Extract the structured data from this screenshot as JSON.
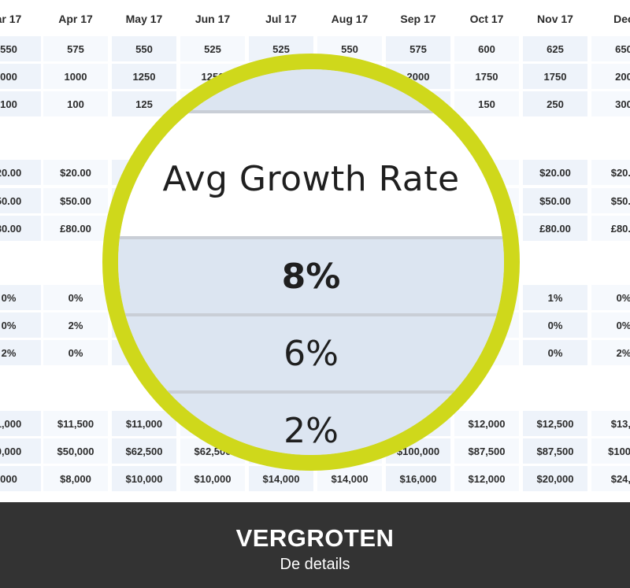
{
  "spreadsheet": {
    "headers": [
      "ar 17",
      "Apr 17",
      "May 17",
      "Jun 17",
      "Jul 17",
      "Aug 17",
      "Sep 17",
      "Oct 17",
      "Nov 17",
      "Dec"
    ],
    "row_groups": [
      [
        [
          "550",
          "575",
          "550",
          "525",
          "525",
          "550",
          "575",
          "600",
          "625",
          "650"
        ],
        [
          "000",
          "1000",
          "1250",
          "1250",
          "",
          "",
          "2000",
          "1750",
          "1750",
          "200"
        ],
        [
          "100",
          "100",
          "125",
          "",
          "",
          "",
          "",
          "150",
          "250",
          "300"
        ]
      ],
      [
        [
          "20.00",
          "$20.00",
          "",
          "",
          "",
          "",
          "",
          "",
          "$20.00",
          "$20.0"
        ],
        [
          "50.00",
          "$50.00",
          "",
          "",
          "",
          "",
          "",
          "",
          "$50.00",
          "$50.0"
        ],
        [
          "80.00",
          "£80.00",
          "",
          "",
          "",
          "",
          "",
          "",
          "£80.00",
          "£80.0"
        ]
      ],
      [
        [
          "0%",
          "0%",
          "",
          "",
          "",
          "",
          "",
          "",
          "1%",
          "0%"
        ],
        [
          "0%",
          "2%",
          "",
          "",
          "",
          "",
          "",
          "",
          "0%",
          "0%"
        ],
        [
          "2%",
          "0%",
          "",
          "",
          "",
          "",
          "",
          "",
          "0%",
          "2%"
        ]
      ],
      [
        [
          "1,000",
          "$11,500",
          "$11,000",
          "",
          "",
          "",
          "",
          "$12,000",
          "$12,500",
          "$13,0"
        ],
        [
          "0,000",
          "$50,000",
          "$62,500",
          "$62,500",
          "",
          "",
          "$100,000",
          "$87,500",
          "$87,500",
          "$100,0"
        ],
        [
          "000",
          "$8,000",
          "$10,000",
          "$10,000",
          "$14,000",
          "$14,000",
          "$16,000",
          "$12,000",
          "$20,000",
          "$24,0"
        ]
      ]
    ]
  },
  "magnifier": {
    "title": "Avg Growth Rate",
    "rates": [
      "8%",
      "6%",
      "2%"
    ],
    "ring_color": "#cfd81b"
  },
  "footer": {
    "title": "VERGROTEN",
    "subtitle": "De details"
  },
  "colors": {
    "cell_bg": "#eef3fa",
    "footer_bg": "#333333"
  }
}
